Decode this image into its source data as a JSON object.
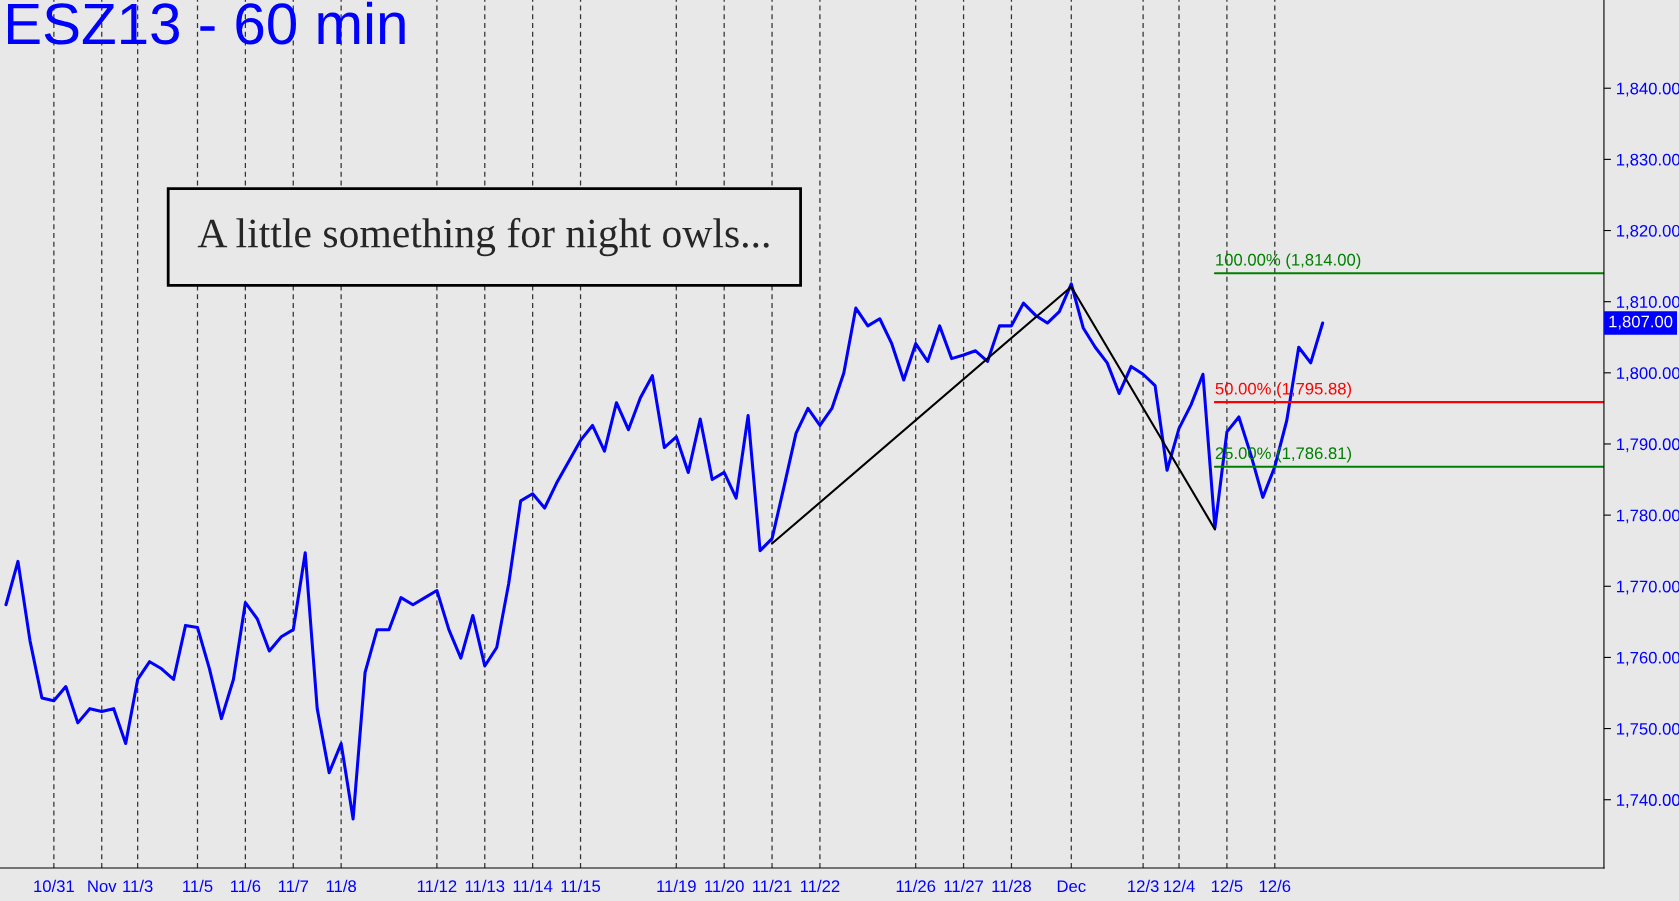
{
  "chart_data": {
    "type": "line",
    "title": "ESZ13 - 60 min",
    "annotations": [
      "A little something for night owls...",
      "1,807.00"
    ],
    "categories": [
      null,
      null,
      null,
      null,
      "10/31",
      null,
      null,
      null,
      "Nov",
      null,
      null,
      "11/3",
      null,
      null,
      null,
      null,
      "11/5",
      null,
      null,
      null,
      "11/6",
      null,
      null,
      null,
      "11/7",
      null,
      null,
      null,
      "11/8",
      null,
      null,
      null,
      null,
      null,
      null,
      null,
      "11/12",
      null,
      null,
      null,
      "11/13",
      null,
      null,
      null,
      "11/14",
      null,
      null,
      null,
      "11/15",
      null,
      null,
      null,
      null,
      null,
      null,
      null,
      "11/19",
      null,
      null,
      null,
      "11/20",
      null,
      null,
      null,
      "11/21",
      null,
      null,
      null,
      "11/22",
      null,
      null,
      null,
      null,
      null,
      null,
      null,
      "11/26",
      null,
      null,
      null,
      "11/27",
      null,
      null,
      null,
      "11/28",
      null,
      null,
      null,
      null,
      "Dec",
      null,
      null,
      null,
      null,
      null,
      "12/3",
      null,
      null,
      "12/4",
      null,
      null,
      null,
      "12/5",
      null,
      null,
      null,
      "12/6",
      null,
      null,
      null,
      null,
      null,
      null,
      null,
      null,
      null,
      null,
      null,
      null,
      null,
      null,
      null,
      null,
      null,
      null,
      null,
      null,
      null,
      null,
      null,
      null,
      null,
      null,
      null
    ],
    "ylim": [
      1730.4,
      1852.4
    ],
    "yticks": [
      {
        "value": 1740,
        "label": "1,740.00"
      },
      {
        "value": 1750,
        "label": "1,750.00"
      },
      {
        "value": 1760,
        "label": "1,760.00"
      },
      {
        "value": 1770,
        "label": "1,770.00"
      },
      {
        "value": 1780,
        "label": "1,780.00"
      },
      {
        "value": 1790,
        "label": "1,790.00"
      },
      {
        "value": 1800,
        "label": "1,800.00"
      },
      {
        "value": 1810,
        "label": "1,810.00"
      },
      {
        "value": 1820,
        "label": "1,820.00"
      },
      {
        "value": 1830,
        "label": "1,830.00"
      },
      {
        "value": 1840,
        "label": "1,840.00"
      }
    ],
    "grid": "x",
    "series": [
      {
        "color": "#0000ff",
        "values": [
          1767.4,
          1773.5,
          1762.4,
          1754.3,
          1753.9,
          1755.9,
          1750.8,
          1752.8,
          1752.4,
          1752.8,
          1747.9,
          1756.9,
          1759.4,
          1758.4,
          1756.9,
          1764.5,
          1764.2,
          1758.4,
          1751.4,
          1756.9,
          1767.7,
          1765.4,
          1760.9,
          1762.9,
          1763.9,
          1774.7,
          1752.8,
          1743.8,
          1747.9,
          1737.3,
          1757.9,
          1763.9,
          1763.9,
          1768.4,
          1767.4,
          1768.4,
          1769.4,
          1763.9,
          1759.9,
          1765.9,
          1758.8,
          1761.4,
          1770.4,
          1782.0,
          1783.0,
          1781.0,
          1784.5,
          1787.5,
          1790.5,
          1792.6,
          1789.0,
          1795.8,
          1792.0,
          1796.5,
          1799.6,
          1789.5,
          1791.0,
          1786.0,
          1793.5,
          1785.0,
          1786.0,
          1782.4,
          1794.0,
          1775.0,
          1776.7,
          1784.0,
          1791.5,
          1795.0,
          1792.6,
          1795.0,
          1800.0,
          1809.1,
          1806.6,
          1807.6,
          1804.1,
          1799.0,
          1804.1,
          1801.6,
          1806.6,
          1802.0,
          1802.5,
          1803.1,
          1801.6,
          1806.6,
          1806.6,
          1809.8,
          1808.1,
          1807.0,
          1808.6,
          1812.5,
          1806.3,
          1803.6,
          1801.4,
          1797.1,
          1800.9,
          1799.8,
          1798.2,
          1786.3,
          1792.2,
          1795.5,
          1799.8,
          1778.2,
          1791.7,
          1793.8,
          1788.5,
          1782.5,
          1786.8,
          1793.3,
          1803.6,
          1801.4,
          1807.0,
          null,
          null,
          null,
          null,
          null,
          null,
          null,
          null,
          null,
          null,
          null,
          null,
          null,
          null,
          null,
          null,
          null,
          null,
          null,
          null,
          null,
          null,
          null
        ]
      },
      {
        "color": "#000000",
        "values": [
          null,
          null,
          null,
          null,
          null,
          null,
          null,
          null,
          null,
          null,
          null,
          null,
          null,
          null,
          null,
          null,
          null,
          null,
          null,
          null,
          null,
          null,
          null,
          null,
          null,
          null,
          null,
          null,
          null,
          null,
          null,
          null,
          null,
          null,
          null,
          null,
          null,
          null,
          null,
          null,
          null,
          null,
          null,
          null,
          null,
          null,
          null,
          null,
          null,
          null,
          null,
          null,
          null,
          null,
          null,
          null,
          null,
          null,
          null,
          null,
          null,
          null,
          null,
          null,
          1776.0,
          null,
          null,
          null,
          null,
          null,
          null,
          null,
          null,
          null,
          null,
          null,
          null,
          null,
          null,
          null,
          null,
          null,
          null,
          null,
          null,
          null,
          null,
          null,
          null,
          1812.1,
          null,
          null,
          null,
          null,
          null,
          null,
          null,
          null,
          null,
          null,
          null,
          1778.0,
          null,
          null,
          null,
          null,
          null,
          null,
          null,
          null,
          null,
          null,
          null,
          null,
          null,
          null,
          null,
          null,
          null,
          null,
          null,
          null,
          null,
          null,
          null,
          null,
          null,
          null,
          null,
          null,
          null,
          null,
          null,
          null
        ]
      }
    ],
    "ref_lines": [
      {
        "axis": "y",
        "value": 1814,
        "label": "100.00% (1,814.00)",
        "color": "#008000"
      },
      {
        "axis": "y",
        "value": 1795.88,
        "label": "50.00% (1,795.88)",
        "color": "#ff0000"
      },
      {
        "axis": "y",
        "value": 1786.81,
        "label": "25.00% (1,786.81)",
        "color": "#008000"
      }
    ]
  }
}
